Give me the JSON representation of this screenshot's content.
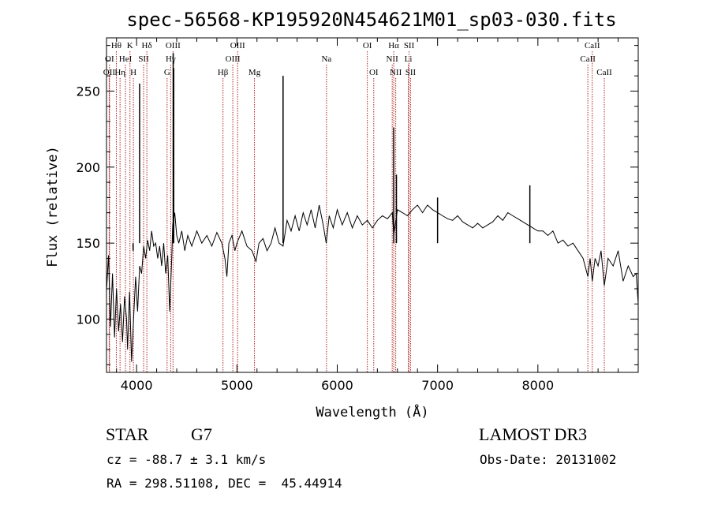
{
  "chart_data": {
    "type": "line",
    "title": "spec-56568-KP195920N454621M01_sp03-030.fits",
    "xlabel": "Wavelength (Å)",
    "ylabel": "Flux (relative)",
    "xlim": [
      3700,
      9000
    ],
    "ylim": [
      65,
      285
    ],
    "x_ticks": [
      4000,
      5000,
      6000,
      7000,
      8000
    ],
    "y_ticks": [
      100,
      150,
      200,
      250
    ],
    "grid": false,
    "series": [
      {
        "color": "#000000",
        "points": [
          [
            3700,
            118
          ],
          [
            3720,
            142
          ],
          [
            3740,
            95
          ],
          [
            3760,
            130
          ],
          [
            3780,
            88
          ],
          [
            3800,
            120
          ],
          [
            3820,
            92
          ],
          [
            3840,
            110
          ],
          [
            3860,
            85
          ],
          [
            3880,
            115
          ],
          [
            3900,
            100
          ],
          [
            3910,
            80
          ],
          [
            3930,
            118
          ],
          [
            3950,
            72
          ],
          [
            3970,
            100
          ],
          [
            3990,
            128
          ],
          [
            4010,
            105
          ],
          [
            4030,
            135
          ],
          [
            4050,
            130
          ],
          [
            4070,
            148
          ],
          [
            4090,
            140
          ],
          [
            4110,
            152
          ],
          [
            4130,
            145
          ],
          [
            4150,
            158
          ],
          [
            4170,
            148
          ],
          [
            4190,
            150
          ],
          [
            4210,
            140
          ],
          [
            4230,
            148
          ],
          [
            4250,
            135
          ],
          [
            4270,
            150
          ],
          [
            4290,
            130
          ],
          [
            4310,
            142
          ],
          [
            4330,
            105
          ],
          [
            4350,
            140
          ],
          [
            4360,
            162
          ],
          [
            4380,
            170
          ],
          [
            4400,
            155
          ],
          [
            4420,
            150
          ],
          [
            4450,
            158
          ],
          [
            4480,
            145
          ],
          [
            4510,
            155
          ],
          [
            4550,
            148
          ],
          [
            4600,
            158
          ],
          [
            4650,
            150
          ],
          [
            4700,
            155
          ],
          [
            4750,
            148
          ],
          [
            4800,
            157
          ],
          [
            4850,
            150
          ],
          [
            4880,
            140
          ],
          [
            4900,
            128
          ],
          [
            4920,
            150
          ],
          [
            4950,
            155
          ],
          [
            4980,
            145
          ],
          [
            5000,
            150
          ],
          [
            5050,
            158
          ],
          [
            5100,
            148
          ],
          [
            5150,
            145
          ],
          [
            5190,
            138
          ],
          [
            5220,
            150
          ],
          [
            5260,
            153
          ],
          [
            5300,
            145
          ],
          [
            5340,
            150
          ],
          [
            5380,
            160
          ],
          [
            5420,
            150
          ],
          [
            5460,
            148
          ],
          [
            5500,
            165
          ],
          [
            5540,
            158
          ],
          [
            5580,
            168
          ],
          [
            5620,
            158
          ],
          [
            5660,
            170
          ],
          [
            5700,
            162
          ],
          [
            5740,
            172
          ],
          [
            5780,
            160
          ],
          [
            5820,
            175
          ],
          [
            5860,
            162
          ],
          [
            5890,
            150
          ],
          [
            5920,
            168
          ],
          [
            5960,
            160
          ],
          [
            6000,
            172
          ],
          [
            6050,
            162
          ],
          [
            6100,
            170
          ],
          [
            6150,
            160
          ],
          [
            6200,
            168
          ],
          [
            6250,
            162
          ],
          [
            6300,
            165
          ],
          [
            6350,
            160
          ],
          [
            6400,
            165
          ],
          [
            6450,
            168
          ],
          [
            6500,
            166
          ],
          [
            6550,
            170
          ],
          [
            6563,
            155
          ],
          [
            6600,
            172
          ],
          [
            6650,
            170
          ],
          [
            6700,
            168
          ],
          [
            6750,
            172
          ],
          [
            6800,
            175
          ],
          [
            6850,
            170
          ],
          [
            6900,
            175
          ],
          [
            6950,
            172
          ],
          [
            7000,
            170
          ],
          [
            7050,
            168
          ],
          [
            7100,
            166
          ],
          [
            7150,
            165
          ],
          [
            7200,
            168
          ],
          [
            7250,
            164
          ],
          [
            7300,
            162
          ],
          [
            7350,
            160
          ],
          [
            7400,
            163
          ],
          [
            7450,
            160
          ],
          [
            7500,
            162
          ],
          [
            7550,
            164
          ],
          [
            7600,
            168
          ],
          [
            7650,
            165
          ],
          [
            7700,
            170
          ],
          [
            7750,
            168
          ],
          [
            7800,
            166
          ],
          [
            7850,
            164
          ],
          [
            7900,
            162
          ],
          [
            7950,
            160
          ],
          [
            8000,
            158
          ],
          [
            8050,
            158
          ],
          [
            8100,
            155
          ],
          [
            8150,
            158
          ],
          [
            8200,
            150
          ],
          [
            8250,
            152
          ],
          [
            8300,
            148
          ],
          [
            8350,
            150
          ],
          [
            8400,
            145
          ],
          [
            8450,
            140
          ],
          [
            8498,
            128
          ],
          [
            8520,
            140
          ],
          [
            8542,
            125
          ],
          [
            8570,
            140
          ],
          [
            8600,
            135
          ],
          [
            8630,
            145
          ],
          [
            8662,
            122
          ],
          [
            8700,
            140
          ],
          [
            8750,
            135
          ],
          [
            8800,
            145
          ],
          [
            8850,
            125
          ],
          [
            8900,
            135
          ],
          [
            8950,
            128
          ],
          [
            8980,
            130
          ],
          [
            9000,
            110
          ]
        ],
        "spikes": [
          [
            3965,
            145
          ],
          [
            4030,
            255
          ],
          [
            4365,
            275
          ],
          [
            4370,
            265
          ],
          [
            5460,
            260
          ],
          [
            6563,
            226
          ],
          [
            6590,
            195
          ],
          [
            7000,
            180
          ],
          [
            7920,
            188
          ]
        ]
      }
    ],
    "line_markers": [
      {
        "x": 3727,
        "label": "OII",
        "row": 3
      },
      {
        "x": 3730,
        "label": "OI",
        "row": 2
      },
      {
        "x": 3798,
        "label": "Hθ",
        "row": 1
      },
      {
        "x": 3835,
        "label": "Hη",
        "row": 3
      },
      {
        "x": 3889,
        "label": "HeI",
        "row": 2
      },
      {
        "x": 3934,
        "label": "K",
        "row": 1
      },
      {
        "x": 3968,
        "label": "H",
        "row": 3
      },
      {
        "x": 4070,
        "label": "SII",
        "row": 2
      },
      {
        "x": 4102,
        "label": "Hδ",
        "row": 1
      },
      {
        "x": 4304,
        "label": "G",
        "row": 3
      },
      {
        "x": 4340,
        "label": "Hγ",
        "row": 2
      },
      {
        "x": 4363,
        "label": "OIII",
        "row": 1
      },
      {
        "x": 4861,
        "label": "Hβ",
        "row": 3
      },
      {
        "x": 4959,
        "label": "OIII",
        "row": 2
      },
      {
        "x": 5007,
        "label": "OIII",
        "row": 1
      },
      {
        "x": 5175,
        "label": "Mg",
        "row": 3
      },
      {
        "x": 5893,
        "label": "Na",
        "row": 2
      },
      {
        "x": 6300,
        "label": "OI",
        "row": 1
      },
      {
        "x": 6364,
        "label": "OI",
        "row": 3
      },
      {
        "x": 6548,
        "label": "NII",
        "row": 2
      },
      {
        "x": 6563,
        "label": "Hα",
        "row": 1
      },
      {
        "x": 6583,
        "label": "NII",
        "row": 3
      },
      {
        "x": 6708,
        "label": "Li",
        "row": 2
      },
      {
        "x": 6716,
        "label": "SII",
        "row": 1
      },
      {
        "x": 6731,
        "label": "SII",
        "row": 3
      },
      {
        "x": 8498,
        "label": "CaII",
        "row": 2
      },
      {
        "x": 8542,
        "label": "CaII",
        "row": 1
      },
      {
        "x": 8662,
        "label": "CaII",
        "row": 3
      }
    ],
    "marker_color": "#b22222"
  },
  "info": {
    "class_label": "STAR",
    "subclass_label": "G7",
    "survey_label": "LAMOST DR3",
    "cz_text": "cz = -88.7 ± 3.1 km/s",
    "obs_date_text": "Obs-Date: 20131002",
    "coords_text": "RA = 298.51108, DEC =  45.44914"
  }
}
